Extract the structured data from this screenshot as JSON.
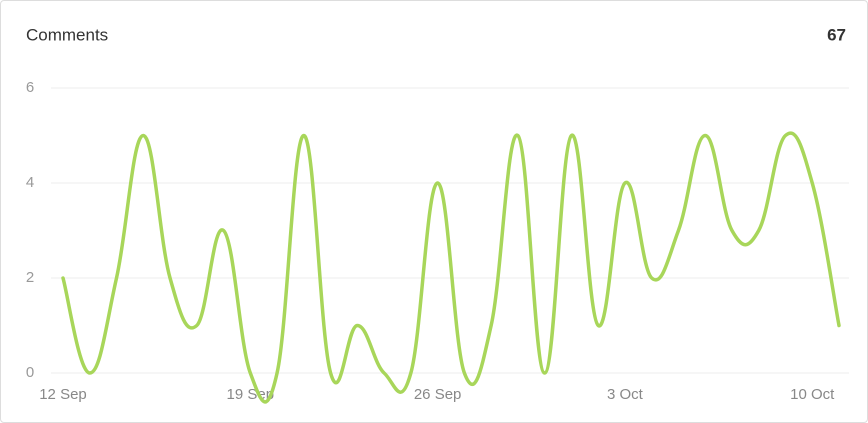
{
  "chart_data": {
    "type": "line",
    "title": "Comments",
    "total": 67,
    "categories": [
      "12 Sep",
      null,
      null,
      null,
      null,
      null,
      null,
      "19 Sep",
      null,
      null,
      null,
      null,
      null,
      null,
      "26 Sep",
      null,
      null,
      null,
      null,
      null,
      null,
      "3 Oct",
      null,
      null,
      null,
      null,
      null,
      null,
      "10 Oct",
      null
    ],
    "series": [
      {
        "name": "Comments",
        "color": "#a8d65a",
        "values": [
          2,
          0,
          2,
          5,
          2,
          1,
          3,
          0,
          0,
          5,
          0,
          1,
          0,
          0,
          4,
          0,
          1,
          5,
          0,
          5,
          1,
          4,
          2,
          3,
          5,
          3,
          3,
          5,
          4,
          1
        ]
      }
    ],
    "ylim": [
      0,
      6
    ],
    "yticks": [
      0,
      2,
      4,
      6
    ],
    "grid": true
  }
}
